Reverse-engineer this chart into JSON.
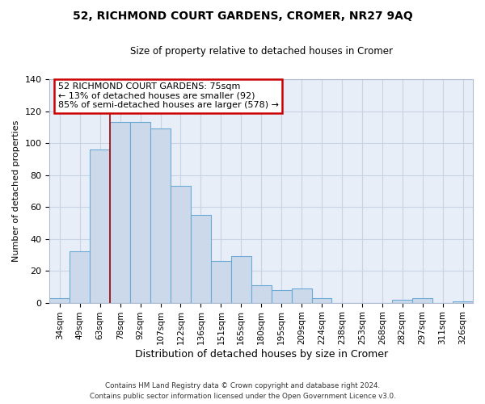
{
  "title": "52, RICHMOND COURT GARDENS, CROMER, NR27 9AQ",
  "subtitle": "Size of property relative to detached houses in Cromer",
  "xlabel": "Distribution of detached houses by size in Cromer",
  "ylabel": "Number of detached properties",
  "footer_lines": [
    "Contains HM Land Registry data © Crown copyright and database right 2024.",
    "Contains public sector information licensed under the Open Government Licence v3.0."
  ],
  "categories": [
    "34sqm",
    "49sqm",
    "63sqm",
    "78sqm",
    "92sqm",
    "107sqm",
    "122sqm",
    "136sqm",
    "151sqm",
    "165sqm",
    "180sqm",
    "195sqm",
    "209sqm",
    "224sqm",
    "238sqm",
    "253sqm",
    "268sqm",
    "282sqm",
    "297sqm",
    "311sqm",
    "326sqm"
  ],
  "values": [
    3,
    32,
    96,
    113,
    113,
    109,
    73,
    55,
    26,
    29,
    11,
    8,
    9,
    3,
    0,
    0,
    0,
    2,
    3,
    0,
    1
  ],
  "bar_color": "#ccd9eb",
  "bar_edge_color": "#6aaad4",
  "bar_linewidth": 0.8,
  "property_line_color": "#aa0000",
  "annotation_title": "52 RICHMOND COURT GARDENS: 75sqm",
  "annotation_line1": "← 13% of detached houses are smaller (92)",
  "annotation_line2": "85% of semi-detached houses are larger (578) →",
  "annotation_box_edge_color": "#cc0000",
  "annotation_box_facecolor": "#ffffff",
  "ylim": [
    0,
    140
  ],
  "yticks": [
    0,
    20,
    40,
    60,
    80,
    100,
    120,
    140
  ],
  "grid_color": "#c8d4e4",
  "background_color": "#ffffff",
  "plot_bg_color": "#e8eef8"
}
